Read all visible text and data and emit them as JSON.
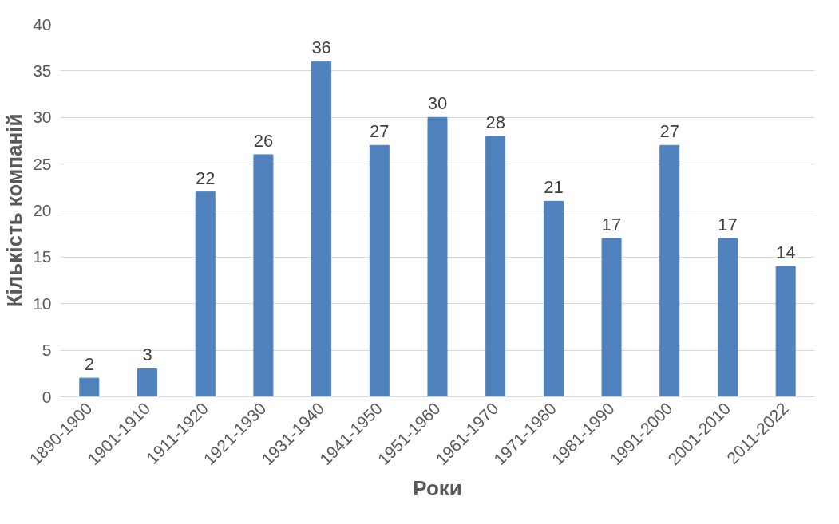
{
  "chart_data": {
    "type": "bar",
    "xlabel": "Роки",
    "ylabel": "Кількість компаній",
    "categories": [
      "1890-1900",
      "1901-1910",
      "1911-1920",
      "1921-1930",
      "1931-1940",
      "1941-1950",
      "1951-1960",
      "1961-1970",
      "1971-1980",
      "1981-1990",
      "1991-2000",
      "2001-2010",
      "2011-2022"
    ],
    "values": [
      2,
      3,
      22,
      26,
      36,
      27,
      30,
      28,
      21,
      17,
      27,
      17,
      14
    ],
    "color": "#4f81bd",
    "ylim": [
      0,
      40
    ],
    "yticks": [
      0,
      5,
      10,
      15,
      20,
      25,
      30,
      35,
      40
    ],
    "grid": "y",
    "data_labels": true
  }
}
